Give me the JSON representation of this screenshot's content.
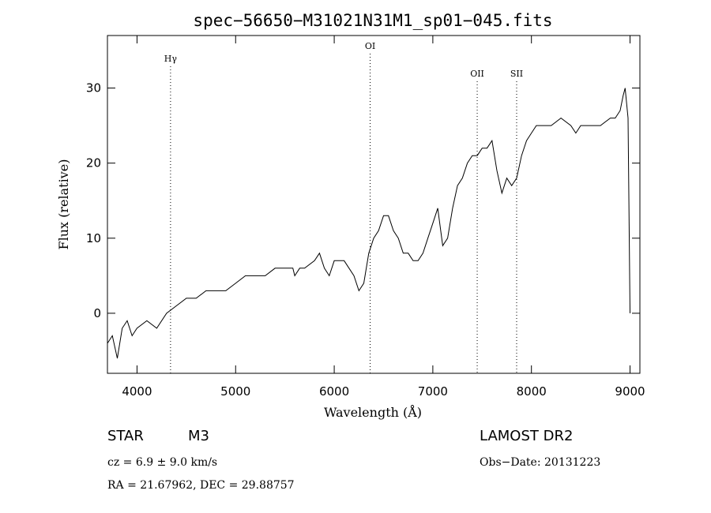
{
  "chart_data": {
    "type": "line",
    "title": "spec−56650−M31021N31M1_sp01−045.fits",
    "xlabel": "Wavelength (Å)",
    "ylabel": "Flux (relative)",
    "xlim": [
      3700,
      9100
    ],
    "ylim": [
      -8,
      37
    ],
    "x_ticks": [
      4000,
      5000,
      6000,
      7000,
      8000,
      9000
    ],
    "y_ticks": [
      0,
      10,
      20,
      30
    ],
    "grid": false,
    "series": [
      {
        "x": [
          3700,
          3750,
          3800,
          3850,
          3900,
          3950,
          4000,
          4100,
          4200,
          4300,
          4400,
          4500,
          4600,
          4700,
          4800,
          4900,
          5000,
          5100,
          5200,
          5300,
          5400,
          5500,
          5580,
          5600,
          5650,
          5700,
          5800,
          5850,
          5900,
          5950,
          6000,
          6100,
          6150,
          6200,
          6250,
          6300,
          6350,
          6400,
          6450,
          6500,
          6550,
          6600,
          6650,
          6700,
          6750,
          6800,
          6850,
          6900,
          6950,
          7000,
          7050,
          7100,
          7150,
          7200,
          7250,
          7300,
          7350,
          7400,
          7450,
          7500,
          7550,
          7600,
          7650,
          7700,
          7750,
          7800,
          7850,
          7900,
          7950,
          8000,
          8050,
          8100,
          8200,
          8300,
          8400,
          8450,
          8500,
          8600,
          8700,
          8800,
          8850,
          8900,
          8930,
          8950,
          8980,
          9000
        ],
        "y": [
          -4,
          -3,
          -6,
          -2,
          -1,
          -3,
          -2,
          -1,
          -2,
          0,
          1,
          2,
          2,
          3,
          3,
          3,
          4,
          5,
          5,
          5,
          6,
          6,
          6,
          5,
          6,
          6,
          7,
          8,
          6,
          5,
          7,
          7,
          6,
          5,
          3,
          4,
          8,
          10,
          11,
          13,
          13,
          11,
          10,
          8,
          8,
          7,
          7,
          8,
          10,
          12,
          14,
          9,
          10,
          14,
          17,
          18,
          20,
          21,
          21,
          22,
          22,
          23,
          19,
          16,
          18,
          17,
          18,
          21,
          23,
          24,
          25,
          25,
          25,
          26,
          25,
          24,
          25,
          25,
          25,
          26,
          26,
          27,
          29,
          30,
          26,
          0
        ]
      }
    ],
    "lines": [
      {
        "label": "Hγ",
        "x": 4340
      },
      {
        "label": "OI",
        "x": 6364
      },
      {
        "label": "OII",
        "x": 7450
      },
      {
        "label": "SII",
        "x": 7850
      }
    ]
  },
  "footer": {
    "object_class": "STAR",
    "subclass": "M3",
    "survey": "LAMOST DR2",
    "cz": "cz = 6.9 ± 9.0 km/s",
    "obs_date": "Obs−Date: 20131223",
    "radec": "RA =  21.67962, DEC =  29.88757"
  }
}
